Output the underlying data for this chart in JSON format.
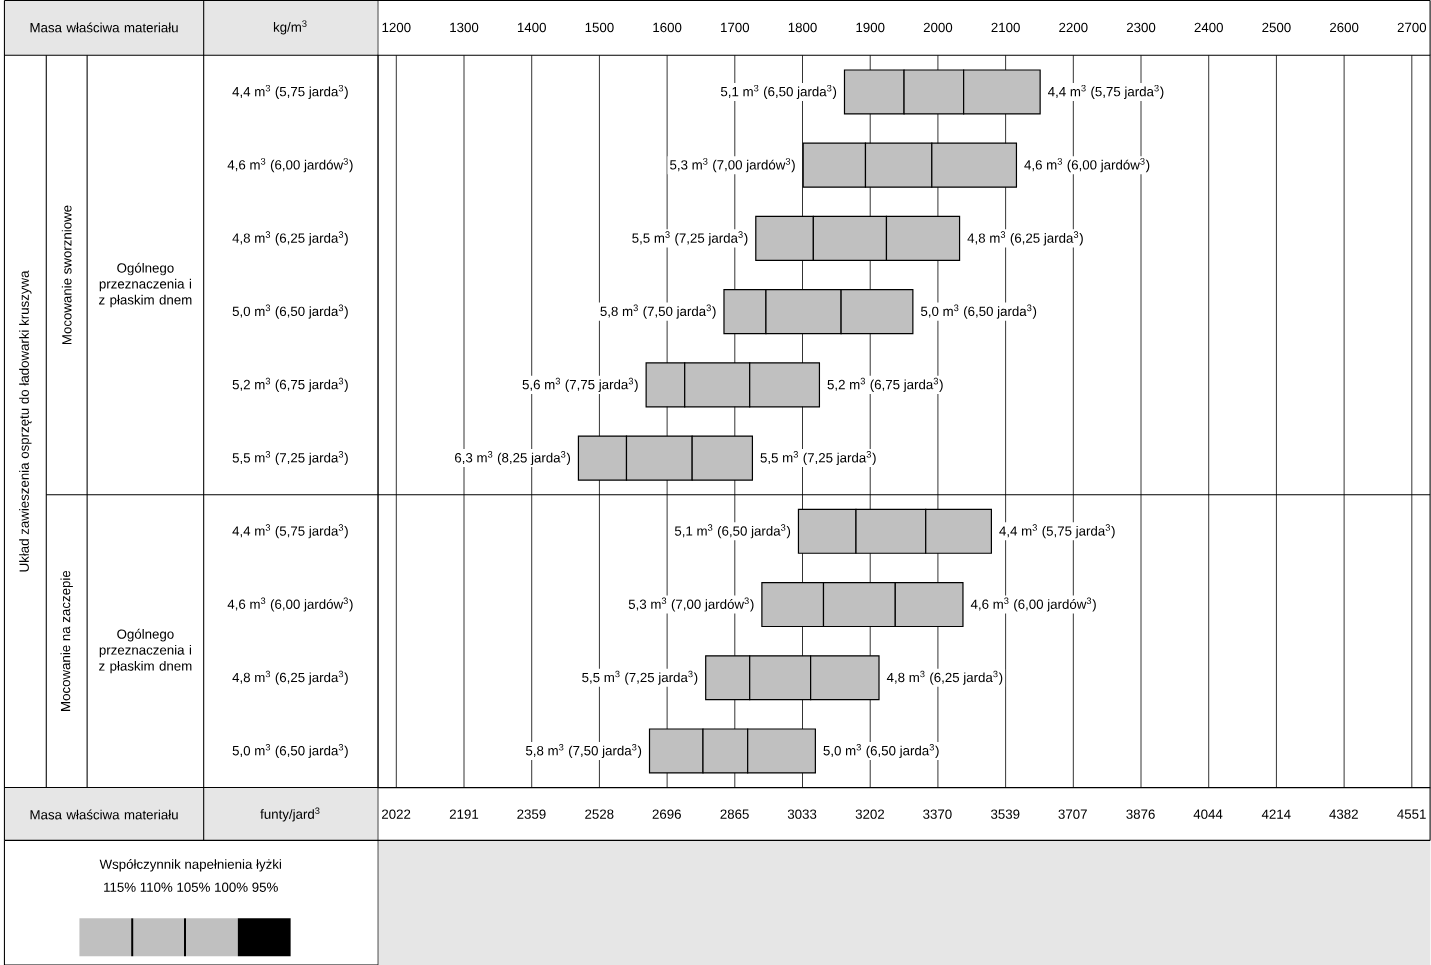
{
  "chart_data": {
    "type": "bar",
    "orientation": "horizontal",
    "categories": [
      "4,4 m$^{3}$ (5,75 jarda$^{3}$)",
      "4,6 m$^{3}$ (6,00 jardów$^{3}$)",
      "4,8 m$^{3}$ (6,25 jarda$^{3}$)",
      "5,0 m$^{3}$ (6,50 jarda$^{3}$)",
      "5,2 m$^{3}$ (6,75 jarda$^{3}$)",
      "5,5 m$^{3}$ (7,25 jarda$^{3}$)",
      "4,4 m$^{3}$ (5,75 jarda$^{3}$)",
      "4,6 m$^{3}$ (6,00 jardów$^{3}$)",
      "4,8 m$^{3}$ (6,25 jarda$^{3}$)",
      "5,0 m$^{3}$ (6,50 jarda$^{3}$)"
    ],
    "series": [
      {
        "color": "#c0c0c0",
        "base": [
          1862,
          1801,
          1731,
          1684,
          1569,
          1469,
          1794,
          1740,
          1657,
          1574
        ],
        "values": [
          88,
          92,
          85,
          62,
          57,
          71,
          85,
          91,
          65,
          79
        ]
      },
      {
        "color": "#c0c0c0",
        "base": [
          1950,
          1893,
          1816,
          1746,
          1626,
          1540,
          1879,
          1831,
          1722,
          1653
        ],
        "values": [
          88,
          98,
          108,
          111,
          96,
          97,
          103,
          106,
          90,
          66
        ]
      },
      {
        "color": "#c0c0c0",
        "base": [
          2038,
          1991,
          1924,
          1857,
          1722,
          1637,
          1982,
          1937,
          1812,
          1719
        ],
        "values": [
          113,
          125,
          108,
          106,
          103,
          89,
          97,
          100,
          101,
          100
        ]
      }
    ],
    "xlim": [
      1173,
      2727
    ],
    "xticks": [
      1200,
      1300,
      1400,
      1500,
      1600,
      1700,
      1800,
      1900,
      2000,
      2100,
      2200,
      2300,
      2400,
      2500,
      2600,
      2700
    ],
    "x2lim": [
      1977,
      4597
    ],
    "x2ticks": [
      2022,
      2191,
      2359,
      2528,
      2696,
      2865,
      3033,
      3202,
      3370,
      3539,
      3707,
      3876,
      4044,
      4214,
      4382,
      4551
    ],
    "xlabel": "kg/m$^{3}$",
    "x2label": "funty/jard$^{3}$",
    "grid": "x",
    "legend_title": "Współczynnik napełnienia łyżki",
    "annotations": [
      {
        "text": "5,1 m$^{3}$ (6,50 jarda$^{3}$)",
        "x": 1862,
        "y": "4,4 m$^{3}$ (5,75 jarda$^{3}$)"
      },
      {
        "text": "4,4 m$^{3}$ (5,75 jarda$^{3}$)",
        "x": 2151,
        "y": "4,4 m$^{3}$ (5,75 jarda$^{3}$)"
      },
      {
        "text": "5,3 m$^{3}$ (7,00 jardów$^{3}$)",
        "x": 1801,
        "y": "4,6 m$^{3}$ (6,00 jardów$^{3}$)"
      },
      {
        "text": "4,6 m$^{3}$ (6,00 jardów$^{3}$)",
        "x": 2116,
        "y": "4,6 m$^{3}$ (6,00 jardów$^{3}$)"
      },
      {
        "text": "5,5 m$^{3}$ (7,25 jarda$^{3}$)",
        "x": 1731,
        "y": "4,8 m$^{3}$ (6,25 jarda$^{3}$)"
      },
      {
        "text": "4,8 m$^{3}$ (6,25 jarda$^{3}$)",
        "x": 2032,
        "y": "4,8 m$^{3}$ (6,25 jarda$^{3}$)"
      },
      {
        "text": "5,8 m$^{3}$ (7,50 jarda$^{3}$)",
        "x": 1684,
        "y": "5,0 m$^{3}$ (6,50 jarda$^{3}$)"
      },
      {
        "text": "5,0 m$^{3}$ (6,50 jarda$^{3}$)",
        "x": 1963,
        "y": "5,0 m$^{3}$ (6,50 jarda$^{3}$)"
      },
      {
        "text": "5,6 m$^{3}$ (7,75 jarda$^{3}$)",
        "x": 1569,
        "y": "5,2 m$^{3}$ (6,75 jarda$^{3}$)"
      },
      {
        "text": "5,2 m$^{3}$ (6,75 jarda$^{3}$)",
        "x": 1825,
        "y": "5,2 m$^{3}$ (6,75 jarda$^{3}$)"
      },
      {
        "text": "6,3 m$^{3}$ (8,25 jarda$^{3}$)",
        "x": 1469,
        "y": "5,5 m$^{3}$ (7,25 jarda$^{3}$)"
      },
      {
        "text": "5,5 m$^{3}$ (7,25 jarda$^{3}$)",
        "x": 1726,
        "y": "5,5 m$^{3}$ (7,25 jarda$^{3}$)"
      },
      "5,1 m$^{3}$ (6,50 jarda$^{3}$)",
      "4,4 m$^{3}$ (5,75 jarda$^{3}$)",
      "5,3 m$^{3}$ (7,00 jardów$^{3}$)",
      "4,6 m$^{3}$ (6,00 jardów$^{3}$)",
      "5,5 m$^{3}$ (7,25 jarda$^{3}$)",
      "4,8 m$^{3}$ (6,25 jarda$^{3}$)",
      "5,8 m$^{3}$ (7,50 jarda$^{3}$)",
      "5,0 m$^{3}$ (6,50 jarda$^{3}$)",
      "Masa właściwa materiału",
      "Masa właściwa materiału",
      "Układ zawieszenia osprzętu do ładowarki kruszywa",
      "Mocowanie sworzniowe",
      "Mocowanie na zaczepie",
      "Ogólnego przeznaczenia i z płaskim dnem",
      "Ogólnego przeznaczenia i z płaskim dnem",
      "115% 110% 105% 100% 95%"
    ]
  }
}
